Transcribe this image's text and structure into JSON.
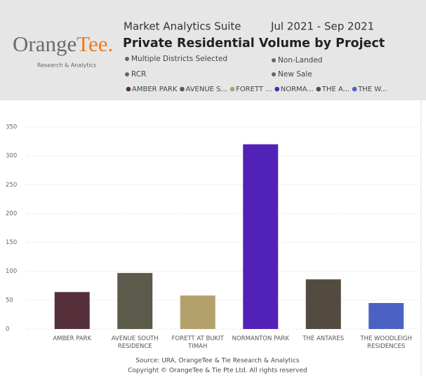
{
  "header": {
    "logo_main": "Orange",
    "logo_accent": "Tee.",
    "logo_sub": "Research & Analytics",
    "app_title": "Market Analytics Suite",
    "period": "Jul 2021 - Sep 2021",
    "filters": [
      "Multiple Districts Selected",
      "Non-Landed",
      "RCR",
      "New Sale"
    ]
  },
  "chart_data": {
    "type": "bar",
    "title": "Private Residential Volume by Project",
    "categories": [
      "AMBER PARK",
      "AVENUE SOUTH RESIDENCE",
      "FORETT AT BUKIT TIMAH",
      "NORMANTON PARK",
      "THE ANTARES",
      "THE WOODLEIGH RESIDENCES"
    ],
    "values": [
      64,
      97,
      58,
      320,
      86,
      45
    ],
    "colors": [
      "#55303a",
      "#5b5a4b",
      "#b3a06b",
      "#5222b8",
      "#544b40",
      "#4c62c2"
    ],
    "legend": [
      "AMBER PARK",
      "AVENUE S...",
      "FORETT ...",
      "NORMA...",
      "THE A...",
      "THE W..."
    ],
    "ylim": [
      0,
      350
    ],
    "yticks": [
      0,
      50,
      100,
      150,
      200,
      250,
      300,
      350
    ],
    "grid": true
  },
  "footer": {
    "source": "Source: URA, OrangeTee & Tie Research & Analytics",
    "copyright": "Copyright © OrangeTee & Tie Pte Ltd. All rights reserved"
  }
}
